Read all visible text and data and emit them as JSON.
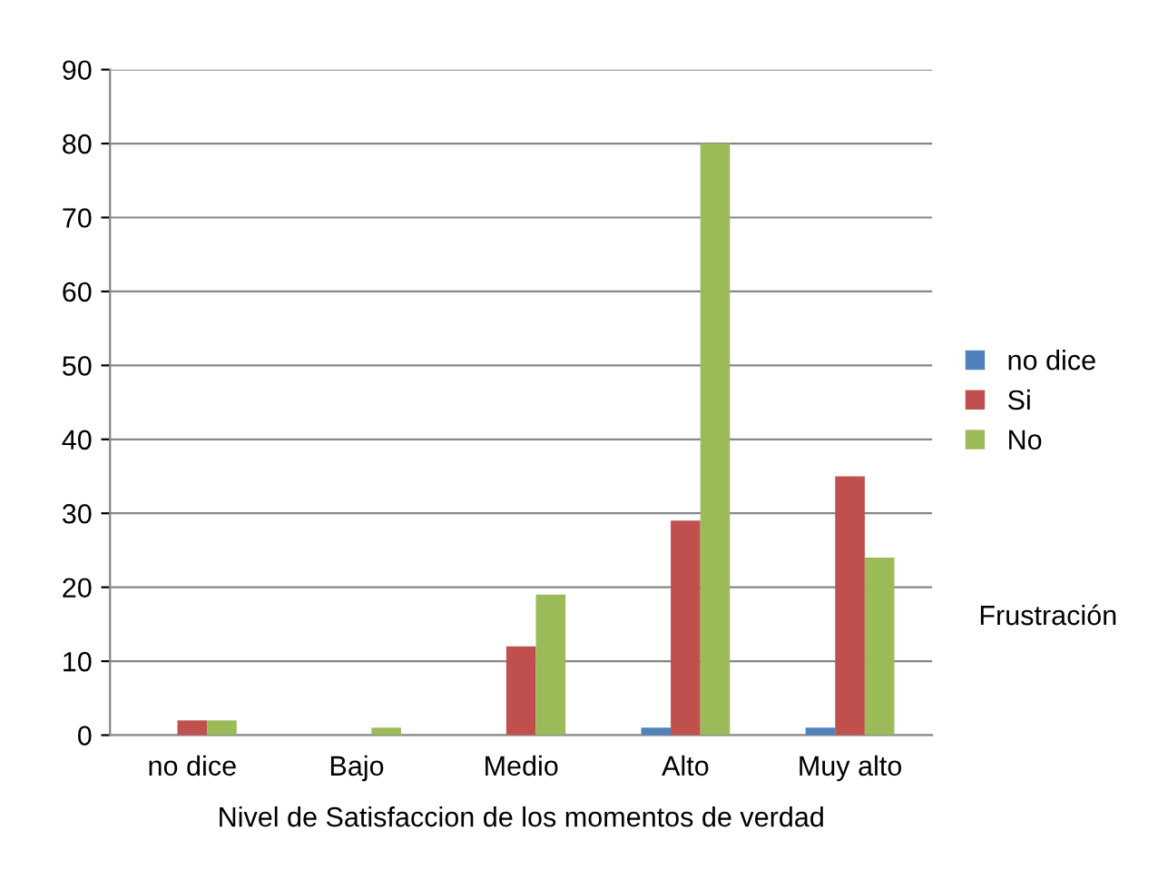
{
  "chart_data": {
    "type": "bar",
    "categories": [
      "no dice",
      "Bajo",
      "Medio",
      "Alto",
      "Muy alto"
    ],
    "xlabel": "Nivel de Satisfaccion de los momentos de verdad",
    "series": [
      {
        "name": "no dice",
        "color": "#4f81bd",
        "values": [
          0,
          0,
          0,
          1,
          1
        ]
      },
      {
        "name": "Si",
        "color": "#c0504d",
        "values": [
          2,
          0,
          12,
          29,
          35
        ]
      },
      {
        "name": "No",
        "color": "#9bbb59",
        "values": [
          2,
          1,
          19,
          80,
          24
        ]
      }
    ],
    "ylim": [
      0,
      90
    ],
    "yticks": [
      0,
      10,
      20,
      30,
      40,
      50,
      60,
      70,
      80,
      90
    ],
    "grid": "y",
    "legend": "right",
    "annotations": [
      "Frustración"
    ]
  }
}
